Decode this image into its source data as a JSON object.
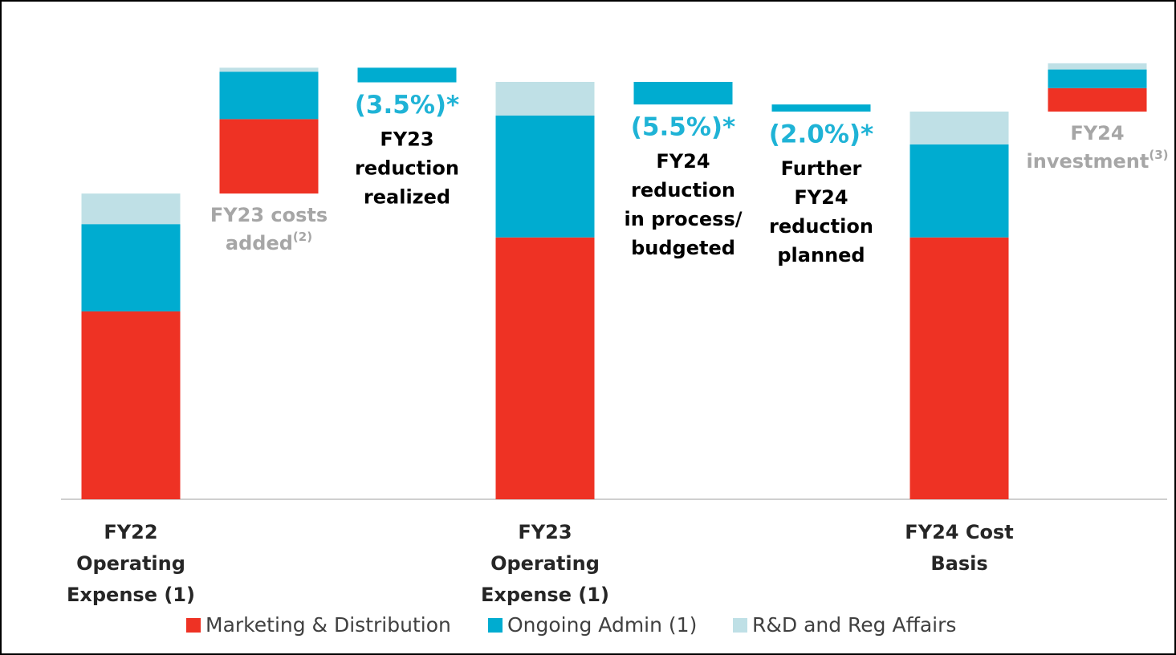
{
  "chart_data": {
    "type": "waterfall",
    "categories": [
      [
        "FY22",
        "Operating",
        "Expense (1)"
      ],
      null,
      null,
      [
        "FY23",
        "Operating",
        "Expense (1)"
      ],
      null,
      null,
      [
        "FY24 Cost",
        "Basis"
      ],
      null
    ],
    "kind": [
      "total",
      "increase",
      "decrease",
      "total",
      "decrease",
      "decrease",
      "total",
      "increase"
    ],
    "series": [
      {
        "name": "Marketing & Distribution",
        "color": "#ee3224",
        "values": [
          42.4,
          16.8,
          null,
          59.1,
          null,
          null,
          59.1,
          5.3
        ]
      },
      {
        "name": "Ongoing Admin (1)",
        "color": "#00acd0",
        "values": [
          19.7,
          10.7,
          null,
          27.5,
          null,
          null,
          21.0,
          4.2
        ]
      },
      {
        "name": "R&D and Reg Affairs",
        "color": "#bfe0e6",
        "values": [
          6.9,
          0.9,
          null,
          7.6,
          null,
          null,
          7.4,
          1.4
        ]
      }
    ],
    "reductions": {
      "color": "#00acd0",
      "values": [
        null,
        null,
        3.3,
        null,
        5.1,
        1.6,
        null,
        null
      ],
      "value_labels": [
        null,
        null,
        "(3.5%)*",
        null,
        "(5.5%)*",
        "(2.0%)*",
        null,
        null
      ]
    },
    "notes": [
      null,
      [
        "FY23 costs",
        "added"
      ],
      [
        "FY23",
        "reduction",
        "realized"
      ],
      null,
      [
        "FY24",
        "reduction",
        "in process/",
        "budgeted"
      ],
      [
        "Further",
        "FY24",
        "reduction",
        "planned"
      ],
      null,
      [
        "FY24",
        "investment"
      ]
    ],
    "superscripts": [
      null,
      "(2)",
      null,
      null,
      null,
      null,
      null,
      "(3)"
    ],
    "ylim": [
      0,
      100
    ]
  }
}
